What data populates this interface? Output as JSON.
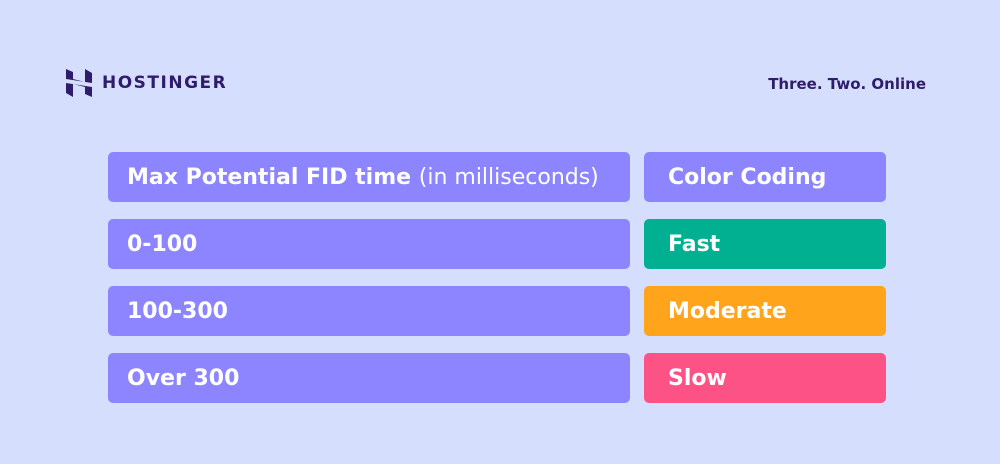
{
  "brand": {
    "name": "HOSTINGER",
    "tagline": "Three. Two. Online"
  },
  "table": {
    "header": {
      "col1": "Max Potential FID time",
      "col1_suffix": "(in milliseconds)",
      "col2": "Color Coding"
    },
    "rows": [
      {
        "range": "0-100",
        "label": "Fast",
        "color": "#00b090"
      },
      {
        "range": "100-300",
        "label": "Moderate",
        "color": "#ffa41b"
      },
      {
        "range": "Over 300",
        "label": "Slow",
        "color": "#fd5285"
      }
    ]
  },
  "colors": {
    "background": "#d6defe",
    "header": "#8c85ff",
    "brand": "#2f1c6a"
  }
}
